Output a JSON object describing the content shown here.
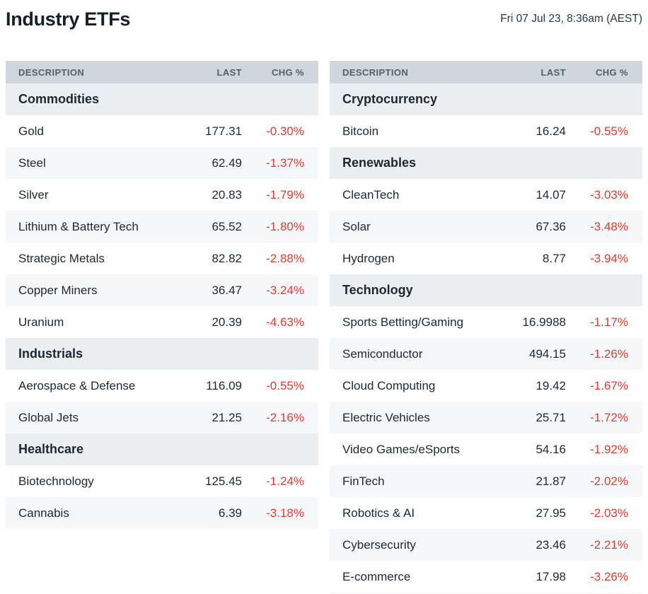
{
  "header": {
    "title": "Industry ETFs",
    "timestamp": "Fri 07 Jul 23, 8:36am (AEST)"
  },
  "columns": {
    "description": "DESCRIPTION",
    "last": "LAST",
    "chg": "CHG %"
  },
  "colors": {
    "title_text": "#16202c",
    "timestamp_text": "#2b3744",
    "header_bg": "#cfd6dc",
    "header_text": "#51606f",
    "section_bg": "#ebeef1",
    "stripe_bg": "#f6f7f8",
    "row_text": "#1d2833",
    "negative": "#e63a2d"
  },
  "tables": [
    {
      "id": "left",
      "truncated": false,
      "sections": [
        {
          "name": "Commodities",
          "rows": [
            {
              "description": "Gold",
              "last": "177.31",
              "chg": "-0.30%"
            },
            {
              "description": "Steel",
              "last": "62.49",
              "chg": "-1.37%"
            },
            {
              "description": "Silver",
              "last": "20.83",
              "chg": "-1.79%"
            },
            {
              "description": "Lithium & Battery Tech",
              "last": "65.52",
              "chg": "-1.80%"
            },
            {
              "description": "Strategic Metals",
              "last": "82.82",
              "chg": "-2.88%"
            },
            {
              "description": "Copper Miners",
              "last": "36.47",
              "chg": "-3.24%"
            },
            {
              "description": "Uranium",
              "last": "20.39",
              "chg": "-4.63%"
            }
          ]
        },
        {
          "name": "Industrials",
          "rows": [
            {
              "description": "Aerospace & Defense",
              "last": "116.09",
              "chg": "-0.55%"
            },
            {
              "description": "Global Jets",
              "last": "21.25",
              "chg": "-2.16%"
            }
          ]
        },
        {
          "name": "Healthcare",
          "rows": [
            {
              "description": "Biotechnology",
              "last": "125.45",
              "chg": "-1.24%"
            },
            {
              "description": "Cannabis",
              "last": "6.39",
              "chg": "-3.18%"
            }
          ]
        }
      ]
    },
    {
      "id": "right",
      "truncated": true,
      "sections": [
        {
          "name": "Cryptocurrency",
          "rows": [
            {
              "description": "Bitcoin",
              "last": "16.24",
              "chg": "-0.55%"
            }
          ]
        },
        {
          "name": "Renewables",
          "rows": [
            {
              "description": "CleanTech",
              "last": "14.07",
              "chg": "-3.03%"
            },
            {
              "description": "Solar",
              "last": "67.36",
              "chg": "-3.48%"
            },
            {
              "description": "Hydrogen",
              "last": "8.77",
              "chg": "-3.94%"
            }
          ]
        },
        {
          "name": "Technology",
          "rows": [
            {
              "description": "Sports Betting/Gaming",
              "last": "16.9988",
              "chg": "-1.17%"
            },
            {
              "description": "Semiconductor",
              "last": "494.15",
              "chg": "-1.26%"
            },
            {
              "description": "Cloud Computing",
              "last": "19.42",
              "chg": "-1.67%"
            },
            {
              "description": "Electric Vehicles",
              "last": "25.71",
              "chg": "-1.72%"
            },
            {
              "description": "Video Games/eSports",
              "last": "54.16",
              "chg": "-1.92%"
            },
            {
              "description": "FinTech",
              "last": "21.87",
              "chg": "-2.02%"
            },
            {
              "description": "Robotics & AI",
              "last": "27.95",
              "chg": "-2.03%"
            },
            {
              "description": "Cybersecurity",
              "last": "23.46",
              "chg": "-2.21%"
            },
            {
              "description": "E-commerce",
              "last": "17.98",
              "chg": "-3.26%"
            }
          ]
        }
      ]
    }
  ]
}
